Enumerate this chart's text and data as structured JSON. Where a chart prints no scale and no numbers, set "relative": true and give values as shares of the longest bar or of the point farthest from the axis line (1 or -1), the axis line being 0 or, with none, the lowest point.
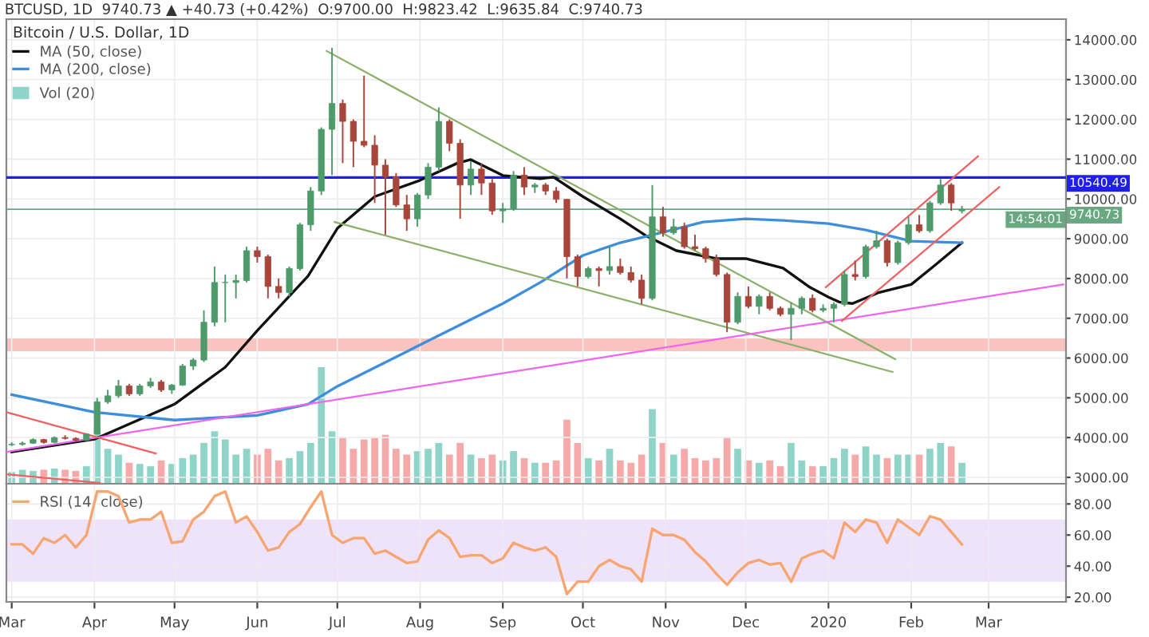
{
  "chart_data": [
    {
      "type": "candlestick",
      "title": "Bitcoin / U.S. Dollar, 1D",
      "subtitle": "BTCUSD, 1D  9740.73 ▲ +40.73 (+0.42%)  O:9700.00  H:9823.42  L:9635.84  C:9740.73",
      "x": [
        "2019-03-01",
        "2019-03-05",
        "2019-03-09",
        "2019-03-13",
        "2019-03-17",
        "2019-03-21",
        "2019-03-25",
        "2019-03-29",
        "2019-04-02",
        "2019-04-06",
        "2019-04-10",
        "2019-04-14",
        "2019-04-18",
        "2019-04-22",
        "2019-04-26",
        "2019-04-30",
        "2019-05-04",
        "2019-05-08",
        "2019-05-12",
        "2019-05-16",
        "2019-05-20",
        "2019-05-24",
        "2019-05-28",
        "2019-06-01",
        "2019-06-05",
        "2019-06-09",
        "2019-06-13",
        "2019-06-17",
        "2019-06-21",
        "2019-06-25",
        "2019-06-29",
        "2019-07-03",
        "2019-07-07",
        "2019-07-11",
        "2019-07-15",
        "2019-07-19",
        "2019-07-23",
        "2019-07-27",
        "2019-07-31",
        "2019-08-04",
        "2019-08-08",
        "2019-08-12",
        "2019-08-16",
        "2019-08-20",
        "2019-08-24",
        "2019-08-28",
        "2019-09-01",
        "2019-09-05",
        "2019-09-09",
        "2019-09-13",
        "2019-09-17",
        "2019-09-21",
        "2019-09-25",
        "2019-09-29",
        "2019-10-03",
        "2019-10-07",
        "2019-10-11",
        "2019-10-15",
        "2019-10-19",
        "2019-10-23",
        "2019-10-27",
        "2019-10-31",
        "2019-11-04",
        "2019-11-08",
        "2019-11-12",
        "2019-11-16",
        "2019-11-20",
        "2019-11-24",
        "2019-11-28",
        "2019-12-02",
        "2019-12-06",
        "2019-12-10",
        "2019-12-14",
        "2019-12-18",
        "2019-12-22",
        "2019-12-26",
        "2019-12-30",
        "2020-01-03",
        "2020-01-07",
        "2020-01-11",
        "2020-01-15",
        "2020-01-19",
        "2020-01-23",
        "2020-01-27",
        "2020-01-31",
        "2020-02-04",
        "2020-02-08",
        "2020-02-12",
        "2020-02-16",
        "2020-02-20"
      ],
      "ohlc": [
        [
          3820,
          3880,
          3790,
          3830
        ],
        [
          3830,
          3900,
          3800,
          3860
        ],
        [
          3860,
          3980,
          3840,
          3950
        ],
        [
          3950,
          3970,
          3850,
          3880
        ],
        [
          3880,
          4030,
          3860,
          4000
        ],
        [
          4000,
          4060,
          3950,
          3980
        ],
        [
          3980,
          4010,
          3900,
          3930
        ],
        [
          3930,
          4110,
          3920,
          4090
        ],
        [
          4090,
          5000,
          4080,
          4900
        ],
        [
          4900,
          5200,
          4850,
          5050
        ],
        [
          5050,
          5450,
          5000,
          5300
        ],
        [
          5300,
          5350,
          5050,
          5100
        ],
        [
          5100,
          5350,
          5050,
          5300
        ],
        [
          5300,
          5500,
          5250,
          5400
        ],
        [
          5400,
          5450,
          5150,
          5200
        ],
        [
          5200,
          5350,
          5100,
          5320
        ],
        [
          5320,
          5850,
          5300,
          5800
        ],
        [
          5800,
          6000,
          5700,
          5950
        ],
        [
          5950,
          7200,
          5900,
          6900
        ],
        [
          6900,
          8300,
          6800,
          7900
        ],
        [
          7900,
          8100,
          6900,
          7900
        ],
        [
          7900,
          8100,
          7500,
          7950
        ],
        [
          7950,
          8800,
          7900,
          8700
        ],
        [
          8700,
          8800,
          8400,
          8550
        ],
        [
          8550,
          8600,
          7500,
          7800
        ],
        [
          7800,
          8000,
          7500,
          7650
        ],
        [
          7650,
          8300,
          7550,
          8250
        ],
        [
          8250,
          9400,
          8200,
          9350
        ],
        [
          9350,
          10300,
          9200,
          10200
        ],
        [
          10200,
          11800,
          10100,
          11750
        ],
        [
          11750,
          13800,
          10600,
          12400
        ],
        [
          12400,
          12500,
          10900,
          11950
        ],
        [
          11950,
          12000,
          10800,
          11450
        ],
        [
          11450,
          13100,
          11300,
          11350
        ],
        [
          11350,
          11600,
          9900,
          10850
        ],
        [
          10850,
          11000,
          9100,
          10550
        ],
        [
          10550,
          10650,
          9800,
          9850
        ],
        [
          9850,
          10100,
          9200,
          9500
        ],
        [
          9500,
          10150,
          9300,
          10100
        ],
        [
          10100,
          10900,
          10000,
          10800
        ],
        [
          10800,
          12300,
          10700,
          11950
        ],
        [
          11950,
          12000,
          11200,
          11400
        ],
        [
          11400,
          11500,
          9500,
          10350
        ],
        [
          10350,
          10950,
          10100,
          10750
        ],
        [
          10750,
          10900,
          10100,
          10400
        ],
        [
          10400,
          10500,
          9600,
          9700
        ],
        [
          9700,
          9900,
          9400,
          9750
        ],
        [
          9750,
          10700,
          9700,
          10600
        ],
        [
          10600,
          10800,
          10100,
          10300
        ],
        [
          10300,
          10400,
          10150,
          10350
        ],
        [
          10350,
          10400,
          10100,
          10200
        ],
        [
          10200,
          10300,
          9900,
          9990
        ],
        [
          9990,
          10000,
          8000,
          8550
        ],
        [
          8550,
          8600,
          7800,
          8050
        ],
        [
          8050,
          8300,
          8000,
          8250
        ],
        [
          8250,
          8300,
          7800,
          8200
        ],
        [
          8200,
          8800,
          8100,
          8300
        ],
        [
          8300,
          8500,
          8100,
          8150
        ],
        [
          8150,
          8300,
          7900,
          7960
        ],
        [
          7960,
          8100,
          7350,
          7500
        ],
        [
          7500,
          10350,
          7450,
          9550
        ],
        [
          9550,
          9800,
          9050,
          9150
        ],
        [
          9150,
          9500,
          9100,
          9300
        ],
        [
          9300,
          9400,
          8750,
          8800
        ],
        [
          8800,
          9100,
          8700,
          8750
        ],
        [
          8750,
          8800,
          8400,
          8500
        ],
        [
          8500,
          8600,
          8050,
          8100
        ],
        [
          8100,
          8150,
          6650,
          6900
        ],
        [
          6900,
          7650,
          6850,
          7550
        ],
        [
          7550,
          7800,
          7250,
          7300
        ],
        [
          7300,
          7600,
          7100,
          7550
        ],
        [
          7550,
          7650,
          7200,
          7250
        ],
        [
          7250,
          7300,
          7050,
          7100
        ],
        [
          7100,
          7400,
          6450,
          7250
        ],
        [
          7250,
          7550,
          7100,
          7500
        ],
        [
          7500,
          7600,
          7150,
          7200
        ],
        [
          7200,
          7350,
          7150,
          7250
        ],
        [
          7250,
          7400,
          6900,
          7350
        ],
        [
          7350,
          8200,
          7300,
          8100
        ],
        [
          8100,
          8450,
          7950,
          8050
        ],
        [
          8050,
          8850,
          8000,
          8800
        ],
        [
          8800,
          9200,
          8750,
          8950
        ],
        [
          8950,
          9000,
          8300,
          8400
        ],
        [
          8400,
          8950,
          8350,
          8900
        ],
        [
          8900,
          9550,
          8850,
          9350
        ],
        [
          9350,
          9600,
          9150,
          9200
        ],
        [
          9200,
          9950,
          9150,
          9900
        ],
        [
          9900,
          10500,
          9850,
          10350
        ],
        [
          10350,
          10400,
          9700,
          9900
        ],
        [
          9700,
          9823.42,
          9635.84,
          9740.73
        ]
      ],
      "colors": [
        "#4e9a6a",
        "#4e9a6a",
        "#4e9a6a",
        "#a8463c",
        "#4e9a6a",
        "#a8463c",
        "#a8463c",
        "#4e9a6a",
        "#4e9a6a",
        "#4e9a6a",
        "#4e9a6a",
        "#a8463c",
        "#4e9a6a",
        "#4e9a6a",
        "#a8463c",
        "#4e9a6a",
        "#4e9a6a",
        "#4e9a6a",
        "#4e9a6a",
        "#4e9a6a",
        "#4e9a6a",
        "#4e9a6a",
        "#4e9a6a",
        "#a8463c",
        "#a8463c",
        "#a8463c",
        "#4e9a6a",
        "#4e9a6a",
        "#4e9a6a",
        "#4e9a6a",
        "#4e9a6a",
        "#a8463c",
        "#a8463c",
        "#a8463c",
        "#a8463c",
        "#a8463c",
        "#a8463c",
        "#a8463c",
        "#4e9a6a",
        "#4e9a6a",
        "#4e9a6a",
        "#a8463c",
        "#a8463c",
        "#4e9a6a",
        "#a8463c",
        "#a8463c",
        "#4e9a6a",
        "#4e9a6a",
        "#a8463c",
        "#4e9a6a",
        "#a8463c",
        "#a8463c",
        "#a8463c",
        "#a8463c",
        "#4e9a6a",
        "#a8463c",
        "#4e9a6a",
        "#a8463c",
        "#a8463c",
        "#a8463c",
        "#4e9a6a",
        "#a8463c",
        "#4e9a6a",
        "#a8463c",
        "#a8463c",
        "#a8463c",
        "#a8463c",
        "#a8463c",
        "#4e9a6a",
        "#a8463c",
        "#4e9a6a",
        "#a8463c",
        "#a8463c",
        "#4e9a6a",
        "#4e9a6a",
        "#a8463c",
        "#4e9a6a",
        "#4e9a6a",
        "#4e9a6a",
        "#a8463c",
        "#4e9a6a",
        "#4e9a6a",
        "#a8463c",
        "#4e9a6a",
        "#4e9a6a",
        "#a8463c",
        "#4e9a6a",
        "#4e9a6a",
        "#a8463c",
        "#4e9a6a"
      ],
      "series": [
        {
          "name": "MA (50, close)",
          "type": "line",
          "color": "#111111",
          "x": [
            "2019-03-01",
            "2019-04-01",
            "2019-05-01",
            "2019-05-20",
            "2019-06-01",
            "2019-06-20",
            "2019-07-01",
            "2019-07-15",
            "2019-08-01",
            "2019-08-15",
            "2019-08-20",
            "2019-09-01",
            "2019-09-15",
            "2019-09-20",
            "2019-10-01",
            "2019-10-15",
            "2019-10-25",
            "2019-11-05",
            "2019-11-20",
            "2019-12-01",
            "2019-12-15",
            "2019-12-25",
            "2020-01-01",
            "2020-01-05",
            "2020-01-10",
            "2020-01-20",
            "2020-02-01",
            "2020-02-10",
            "2020-02-20"
          ],
          "values": [
            3640,
            3960,
            4840,
            5770,
            6690,
            8060,
            9260,
            10060,
            10470,
            10900,
            10990,
            10590,
            10510,
            10550,
            10060,
            9500,
            9060,
            8700,
            8500,
            8500,
            8260,
            7780,
            7530,
            7410,
            7370,
            7650,
            7850,
            8340,
            8900
          ]
        },
        {
          "name": "MA (200, close)",
          "type": "line",
          "color": "#3d8fdc",
          "x": [
            "2019-03-01",
            "2019-04-01",
            "2019-05-01",
            "2019-06-01",
            "2019-06-20",
            "2019-07-01",
            "2019-08-01",
            "2019-09-01",
            "2019-09-15",
            "2019-10-01",
            "2019-10-15",
            "2019-11-01",
            "2019-11-15",
            "2019-12-01",
            "2019-12-15",
            "2020-01-01",
            "2020-01-15",
            "2020-02-01",
            "2020-02-20"
          ],
          "values": [
            5080,
            4640,
            4440,
            4560,
            4840,
            5290,
            6330,
            7370,
            7900,
            8580,
            8900,
            9180,
            9420,
            9500,
            9460,
            9380,
            9220,
            8940,
            8900
          ]
        },
        {
          "type": "line",
          "color": "#8ab06a",
          "x": [
            "2019-06-27",
            "2020-01-26"
          ],
          "values": [
            13720,
            5970
          ]
        },
        {
          "type": "line",
          "color": "#8ab06a",
          "x": [
            "2019-06-30",
            "2020-01-25"
          ],
          "values": [
            9420,
            5650
          ]
        },
        {
          "type": "line",
          "color": "#ee66ee",
          "x": [
            "2019-02-27",
            "2020-03-29"
          ],
          "values": [
            3640,
            7850
          ]
        },
        {
          "type": "line",
          "color": "#f06060",
          "x": [
            "2019-02-27",
            "2019-04-24"
          ],
          "values": [
            4640,
            3600
          ]
        },
        {
          "type": "line",
          "color": "#f06060",
          "x": [
            "2019-02-27",
            "2019-04-03"
          ],
          "values": [
            3080,
            2860
          ]
        },
        {
          "type": "line",
          "color": "#f06060",
          "x": [
            "2019-12-31",
            "2020-02-26"
          ],
          "values": [
            7780,
            11070
          ]
        },
        {
          "type": "line",
          "color": "#f06060",
          "x": [
            "2020-01-06",
            "2020-03-05"
          ],
          "values": [
            6930,
            10300
          ]
        }
      ],
      "xlim": [
        "2019-02-27",
        "2020-03-30"
      ],
      "ylim": [
        2840,
        14520
      ],
      "xticks": [
        {
          "value": "2019-03-01",
          "label": null
        },
        {
          "value": "2019-04-01",
          "label": null
        },
        {
          "value": "2019-05-01",
          "label": null
        },
        {
          "value": "2019-06-01",
          "label": null
        },
        {
          "value": "2019-07-01",
          "label": null
        },
        {
          "value": "2019-08-01",
          "label": null
        },
        {
          "value": "2019-09-01",
          "label": null
        },
        {
          "value": "2019-10-01",
          "label": null
        },
        {
          "value": "2019-11-01",
          "label": null
        },
        {
          "value": "2019-12-01",
          "label": null
        },
        {
          "value": "2020-01-01",
          "label": null
        },
        {
          "value": "2020-02-01",
          "label": null
        },
        {
          "value": "2020-03-01",
          "label": null
        }
      ],
      "yticks": [
        {
          "value": 3000,
          "label": "3000.00"
        },
        {
          "value": 4000,
          "label": "4000.00"
        },
        {
          "value": 5000,
          "label": "5000.00"
        },
        {
          "value": 6000,
          "label": "6000.00"
        },
        {
          "value": 7000,
          "label": "7000.00"
        },
        {
          "value": 8000,
          "label": "8000.00"
        },
        {
          "value": 9000,
          "label": "9000.00"
        },
        {
          "value": 10000,
          "label": "10000.00"
        },
        {
          "value": 11000,
          "label": "11000.00"
        },
        {
          "value": 12000,
          "label": "12000.00"
        },
        {
          "value": 13000,
          "label": "13000.00"
        },
        {
          "value": 14000,
          "label": "14000.00"
        }
      ],
      "tick_labels": "y",
      "grid": true,
      "legend": "top left",
      "ref_lines": [
        {
          "axis": "y",
          "value": 10540.49,
          "label": "10540.49",
          "color": "#1f1fe8"
        },
        {
          "axis": "y",
          "value": 9740.73,
          "label": "9740.73",
          "color": "#6aa882"
        }
      ],
      "bands": [
        {
          "axis": "y",
          "from": 6170,
          "to": 6490,
          "color": "#f9c4c0"
        }
      ],
      "annotations": [
        "14:54:01"
      ]
    },
    {
      "type": "bar",
      "relative": true,
      "legend": "top left",
      "tick_labels": false,
      "x": [
        "2019-03-01",
        "2019-03-05",
        "2019-03-09",
        "2019-03-13",
        "2019-03-17",
        "2019-03-21",
        "2019-03-25",
        "2019-03-29",
        "2019-04-02",
        "2019-04-06",
        "2019-04-10",
        "2019-04-14",
        "2019-04-18",
        "2019-04-22",
        "2019-04-26",
        "2019-04-30",
        "2019-05-04",
        "2019-05-08",
        "2019-05-12",
        "2019-05-16",
        "2019-05-20",
        "2019-05-24",
        "2019-05-28",
        "2019-06-01",
        "2019-06-05",
        "2019-06-09",
        "2019-06-13",
        "2019-06-17",
        "2019-06-21",
        "2019-06-25",
        "2019-06-29",
        "2019-07-03",
        "2019-07-07",
        "2019-07-11",
        "2019-07-15",
        "2019-07-19",
        "2019-07-23",
        "2019-07-27",
        "2019-07-31",
        "2019-08-04",
        "2019-08-08",
        "2019-08-12",
        "2019-08-16",
        "2019-08-20",
        "2019-08-24",
        "2019-08-28",
        "2019-09-01",
        "2019-09-05",
        "2019-09-09",
        "2019-09-13",
        "2019-09-17",
        "2019-09-21",
        "2019-09-25",
        "2019-09-29",
        "2019-10-03",
        "2019-10-07",
        "2019-10-11",
        "2019-10-15",
        "2019-10-19",
        "2019-10-23",
        "2019-10-27",
        "2019-10-31",
        "2019-11-04",
        "2019-11-08",
        "2019-11-12",
        "2019-11-16",
        "2019-11-20",
        "2019-11-24",
        "2019-11-28",
        "2019-12-02",
        "2019-12-06",
        "2019-12-10",
        "2019-12-14",
        "2019-12-18",
        "2019-12-22",
        "2019-12-26",
        "2019-12-30",
        "2020-01-03",
        "2020-01-07",
        "2020-01-11",
        "2020-01-15",
        "2020-01-19",
        "2020-01-23",
        "2020-01-27",
        "2020-01-31",
        "2020-02-04",
        "2020-02-08",
        "2020-02-12",
        "2020-02-16",
        "2020-02-20"
      ],
      "series": [
        {
          "name": "Vol (20)",
          "color": "#8fd4c9",
          "values": [
            0.1,
            0.12,
            0.11,
            0.12,
            0.13,
            0.12,
            0.11,
            0.15,
            0.48,
            0.3,
            0.25,
            0.18,
            0.17,
            0.15,
            0.2,
            0.17,
            0.22,
            0.25,
            0.35,
            0.45,
            0.38,
            0.25,
            0.3,
            0.25,
            0.3,
            0.2,
            0.22,
            0.28,
            0.35,
            1.0,
            0.45,
            0.4,
            0.3,
            0.38,
            0.4,
            0.42,
            0.3,
            0.25,
            0.28,
            0.3,
            0.35,
            0.25,
            0.35,
            0.25,
            0.22,
            0.25,
            0.2,
            0.28,
            0.22,
            0.18,
            0.18,
            0.2,
            0.55,
            0.35,
            0.22,
            0.2,
            0.3,
            0.2,
            0.18,
            0.25,
            0.64,
            0.35,
            0.25,
            0.3,
            0.22,
            0.2,
            0.22,
            0.4,
            0.3,
            0.2,
            0.18,
            0.2,
            0.15,
            0.35,
            0.2,
            0.15,
            0.15,
            0.22,
            0.3,
            0.25,
            0.32,
            0.25,
            0.22,
            0.25,
            0.25,
            0.25,
            0.3,
            0.35,
            0.32,
            0.18
          ],
          "colors": [
            "#8fd4c9",
            "#8fd4c9",
            "#8fd4c9",
            "#f5a9a9",
            "#8fd4c9",
            "#f5a9a9",
            "#f5a9a9",
            "#8fd4c9",
            "#8fd4c9",
            "#8fd4c9",
            "#8fd4c9",
            "#f5a9a9",
            "#8fd4c9",
            "#8fd4c9",
            "#f5a9a9",
            "#8fd4c9",
            "#8fd4c9",
            "#8fd4c9",
            "#8fd4c9",
            "#8fd4c9",
            "#8fd4c9",
            "#8fd4c9",
            "#8fd4c9",
            "#f5a9a9",
            "#f5a9a9",
            "#f5a9a9",
            "#8fd4c9",
            "#8fd4c9",
            "#8fd4c9",
            "#8fd4c9",
            "#8fd4c9",
            "#f5a9a9",
            "#f5a9a9",
            "#f5a9a9",
            "#f5a9a9",
            "#f5a9a9",
            "#f5a9a9",
            "#f5a9a9",
            "#8fd4c9",
            "#8fd4c9",
            "#8fd4c9",
            "#f5a9a9",
            "#f5a9a9",
            "#8fd4c9",
            "#f5a9a9",
            "#f5a9a9",
            "#8fd4c9",
            "#8fd4c9",
            "#f5a9a9",
            "#8fd4c9",
            "#f5a9a9",
            "#f5a9a9",
            "#f5a9a9",
            "#f5a9a9",
            "#8fd4c9",
            "#f5a9a9",
            "#8fd4c9",
            "#f5a9a9",
            "#f5a9a9",
            "#f5a9a9",
            "#8fd4c9",
            "#f5a9a9",
            "#8fd4c9",
            "#f5a9a9",
            "#f5a9a9",
            "#f5a9a9",
            "#f5a9a9",
            "#f5a9a9",
            "#8fd4c9",
            "#f5a9a9",
            "#8fd4c9",
            "#f5a9a9",
            "#f5a9a9",
            "#8fd4c9",
            "#8fd4c9",
            "#f5a9a9",
            "#8fd4c9",
            "#8fd4c9",
            "#8fd4c9",
            "#f5a9a9",
            "#8fd4c9",
            "#8fd4c9",
            "#f5a9a9",
            "#8fd4c9",
            "#8fd4c9",
            "#f5a9a9",
            "#8fd4c9",
            "#8fd4c9",
            "#f5a9a9",
            "#8fd4c9"
          ]
        }
      ],
      "xlim": [
        "2019-02-27",
        "2020-03-30"
      ]
    },
    {
      "type": "line",
      "grid": true,
      "legend": "top left",
      "x": [
        "2019-03-01",
        "2019-03-05",
        "2019-03-09",
        "2019-03-13",
        "2019-03-17",
        "2019-03-21",
        "2019-03-25",
        "2019-03-29",
        "2019-04-02",
        "2019-04-06",
        "2019-04-10",
        "2019-04-14",
        "2019-04-18",
        "2019-04-22",
        "2019-04-26",
        "2019-04-30",
        "2019-05-04",
        "2019-05-08",
        "2019-05-12",
        "2019-05-16",
        "2019-05-20",
        "2019-05-24",
        "2019-05-28",
        "2019-06-01",
        "2019-06-05",
        "2019-06-09",
        "2019-06-13",
        "2019-06-17",
        "2019-06-21",
        "2019-06-25",
        "2019-06-29",
        "2019-07-03",
        "2019-07-07",
        "2019-07-11",
        "2019-07-15",
        "2019-07-19",
        "2019-07-23",
        "2019-07-27",
        "2019-07-31",
        "2019-08-04",
        "2019-08-08",
        "2019-08-12",
        "2019-08-16",
        "2019-08-20",
        "2019-08-24",
        "2019-08-28",
        "2019-09-01",
        "2019-09-05",
        "2019-09-09",
        "2019-09-13",
        "2019-09-17",
        "2019-09-21",
        "2019-09-25",
        "2019-09-29",
        "2019-10-03",
        "2019-10-07",
        "2019-10-11",
        "2019-10-15",
        "2019-10-19",
        "2019-10-23",
        "2019-10-27",
        "2019-10-31",
        "2019-11-04",
        "2019-11-08",
        "2019-11-12",
        "2019-11-16",
        "2019-11-20",
        "2019-11-24",
        "2019-11-28",
        "2019-12-02",
        "2019-12-06",
        "2019-12-10",
        "2019-12-14",
        "2019-12-18",
        "2019-12-22",
        "2019-12-26",
        "2019-12-30",
        "2020-01-03",
        "2020-01-07",
        "2020-01-11",
        "2020-01-15",
        "2020-01-19",
        "2020-01-23",
        "2020-01-27",
        "2020-01-31",
        "2020-02-04",
        "2020-02-08",
        "2020-02-12",
        "2020-02-16",
        "2020-02-20"
      ],
      "series": [
        {
          "name": "RSI (14, close)",
          "color": "#f7a672",
          "values": [
            54,
            54,
            48,
            58,
            55,
            60,
            52,
            60,
            88,
            88,
            85,
            68,
            70,
            70,
            75,
            55,
            56,
            70,
            75,
            85,
            88,
            68,
            72,
            62,
            50,
            52,
            62,
            67,
            78,
            88,
            60,
            55,
            58,
            58,
            48,
            50,
            46,
            42,
            43,
            57,
            63,
            58,
            46,
            47,
            47,
            42,
            45,
            55,
            52,
            50,
            52,
            46,
            22,
            30,
            30,
            40,
            44,
            40,
            38,
            30,
            64,
            60,
            60,
            57,
            49,
            43,
            35,
            28,
            36,
            42,
            44,
            41,
            42,
            30,
            45,
            48,
            50,
            45,
            68,
            62,
            70,
            68,
            55,
            70,
            65,
            60,
            72,
            70,
            62,
            54
          ]
        }
      ],
      "xlim": [
        "2019-02-27",
        "2020-03-30"
      ],
      "ylim": [
        17,
        93
      ],
      "xticks": [
        {
          "value": "2019-03-01",
          "label": "Mar"
        },
        {
          "value": "2019-04-01",
          "label": "Apr"
        },
        {
          "value": "2019-05-01",
          "label": "May"
        },
        {
          "value": "2019-06-01",
          "label": "Jun"
        },
        {
          "value": "2019-07-01",
          "label": "Jul"
        },
        {
          "value": "2019-08-01",
          "label": "Aug"
        },
        {
          "value": "2019-09-01",
          "label": "Sep"
        },
        {
          "value": "2019-10-01",
          "label": "Oct"
        },
        {
          "value": "2019-11-01",
          "label": "Nov"
        },
        {
          "value": "2019-12-01",
          "label": "Dec"
        },
        {
          "value": "2020-01-01",
          "label": "2020"
        },
        {
          "value": "2020-02-01",
          "label": "Feb"
        },
        {
          "value": "2020-03-01",
          "label": "Mar"
        }
      ],
      "yticks": [
        {
          "value": 20,
          "label": "20.00"
        },
        {
          "value": 40,
          "label": "40.00"
        },
        {
          "value": 60,
          "label": "60.00"
        },
        {
          "value": 80,
          "label": "80.00"
        }
      ],
      "bands": [
        {
          "axis": "y",
          "from": 30,
          "to": 70,
          "color": "#efe2fb"
        }
      ]
    }
  ]
}
